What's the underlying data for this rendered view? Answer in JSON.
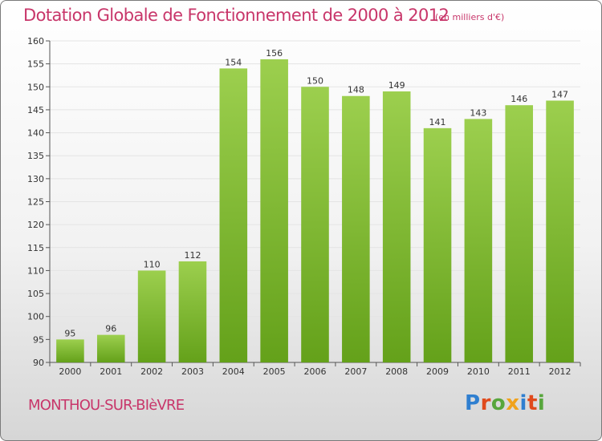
{
  "header": {
    "title": "Dotation Globale de Fonctionnement de 2000 à 2012",
    "unit": "(en milliers d'€)"
  },
  "footer": {
    "commune": "MONTHOU-SUR-BIèVRE",
    "brand": "Proxiti",
    "brand_letter_colors": [
      "#2f7fd0",
      "#e04a1c",
      "#57a63c",
      "#f0a21c",
      "#2f7fd0",
      "#e04a1c",
      "#57a63c"
    ]
  },
  "chart_data": {
    "type": "bar",
    "title": "Dotation Globale de Fonctionnement de 2000 à 2012",
    "subtitle": "(en milliers d'€)",
    "xlabel": "",
    "ylabel": "",
    "categories": [
      "2000",
      "2001",
      "2002",
      "2003",
      "2004",
      "2005",
      "2006",
      "2007",
      "2008",
      "2009",
      "2010",
      "2011",
      "2012"
    ],
    "values": [
      95,
      96,
      110,
      112,
      154,
      156,
      150,
      148,
      149,
      141,
      143,
      146,
      147
    ],
    "ylim": [
      90,
      160
    ],
    "yticks": [
      90,
      95,
      100,
      105,
      110,
      115,
      120,
      125,
      130,
      135,
      140,
      145,
      150,
      155,
      160
    ],
    "grid": true,
    "data_labels": true,
    "bar_color_top": "#9ccf4e",
    "bar_color_bottom": "#64a11a",
    "label_color": "#333333"
  }
}
